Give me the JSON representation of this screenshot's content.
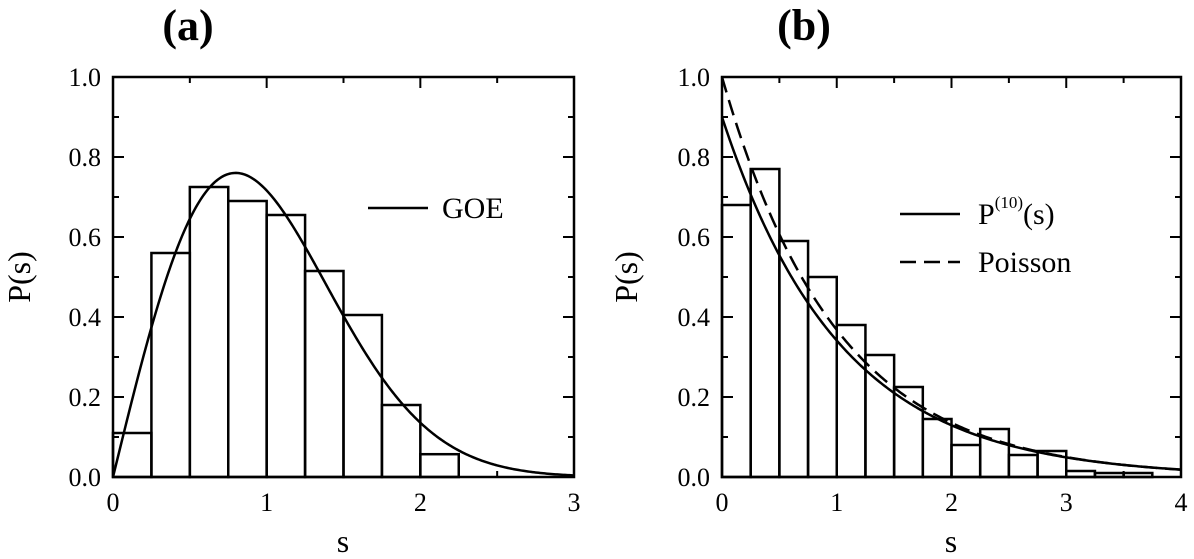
{
  "chart_data": [
    {
      "type": "bar",
      "title": "(a)",
      "xlabel": "s",
      "ylabel": "P(s)",
      "xlim": [
        0,
        3
      ],
      "ylim": [
        0,
        1.0
      ],
      "xticks": [
        "0",
        "1",
        "2",
        "3"
      ],
      "yticks": [
        "0.0",
        "0.2",
        "0.4",
        "0.6",
        "0.8",
        "1.0"
      ],
      "histogram": {
        "bin_width": 0.25,
        "bin_starts": [
          0,
          0.25,
          0.5,
          0.75,
          1.0,
          1.25,
          1.5,
          1.75,
          2.0
        ],
        "values": [
          0.11,
          0.56,
          0.725,
          0.69,
          0.655,
          0.515,
          0.405,
          0.18,
          0.057
        ]
      },
      "series": [
        {
          "name": "GOE",
          "style": "solid",
          "function": "goe"
        }
      ],
      "legend": {
        "position": "upper right"
      }
    },
    {
      "type": "bar",
      "title": "(b)",
      "xlabel": "s",
      "ylabel": "P(s)",
      "xlim": [
        0,
        4
      ],
      "ylim": [
        0,
        1.0
      ],
      "xticks": [
        "0",
        "1",
        "2",
        "3",
        "4"
      ],
      "yticks": [
        "0.0",
        "0.2",
        "0.4",
        "0.6",
        "0.8",
        "1.0"
      ],
      "histogram": {
        "bin_width": 0.25,
        "bin_starts": [
          0,
          0.25,
          0.5,
          0.75,
          1.0,
          1.25,
          1.5,
          1.75,
          2.0,
          2.25,
          2.5,
          2.75,
          3.0,
          3.25,
          3.5
        ],
        "values": [
          0.68,
          0.77,
          0.59,
          0.5,
          0.38,
          0.305,
          0.225,
          0.145,
          0.08,
          0.12,
          0.055,
          0.065,
          0.015,
          0.01,
          0.01
        ]
      },
      "series": [
        {
          "name_base": "P",
          "name_sup": "(10)",
          "name_tail": "(s)",
          "style": "solid",
          "function": "p10"
        },
        {
          "name": "Poisson",
          "style": "dashed",
          "function": "poisson"
        }
      ],
      "legend": {
        "position": "upper right"
      }
    }
  ]
}
